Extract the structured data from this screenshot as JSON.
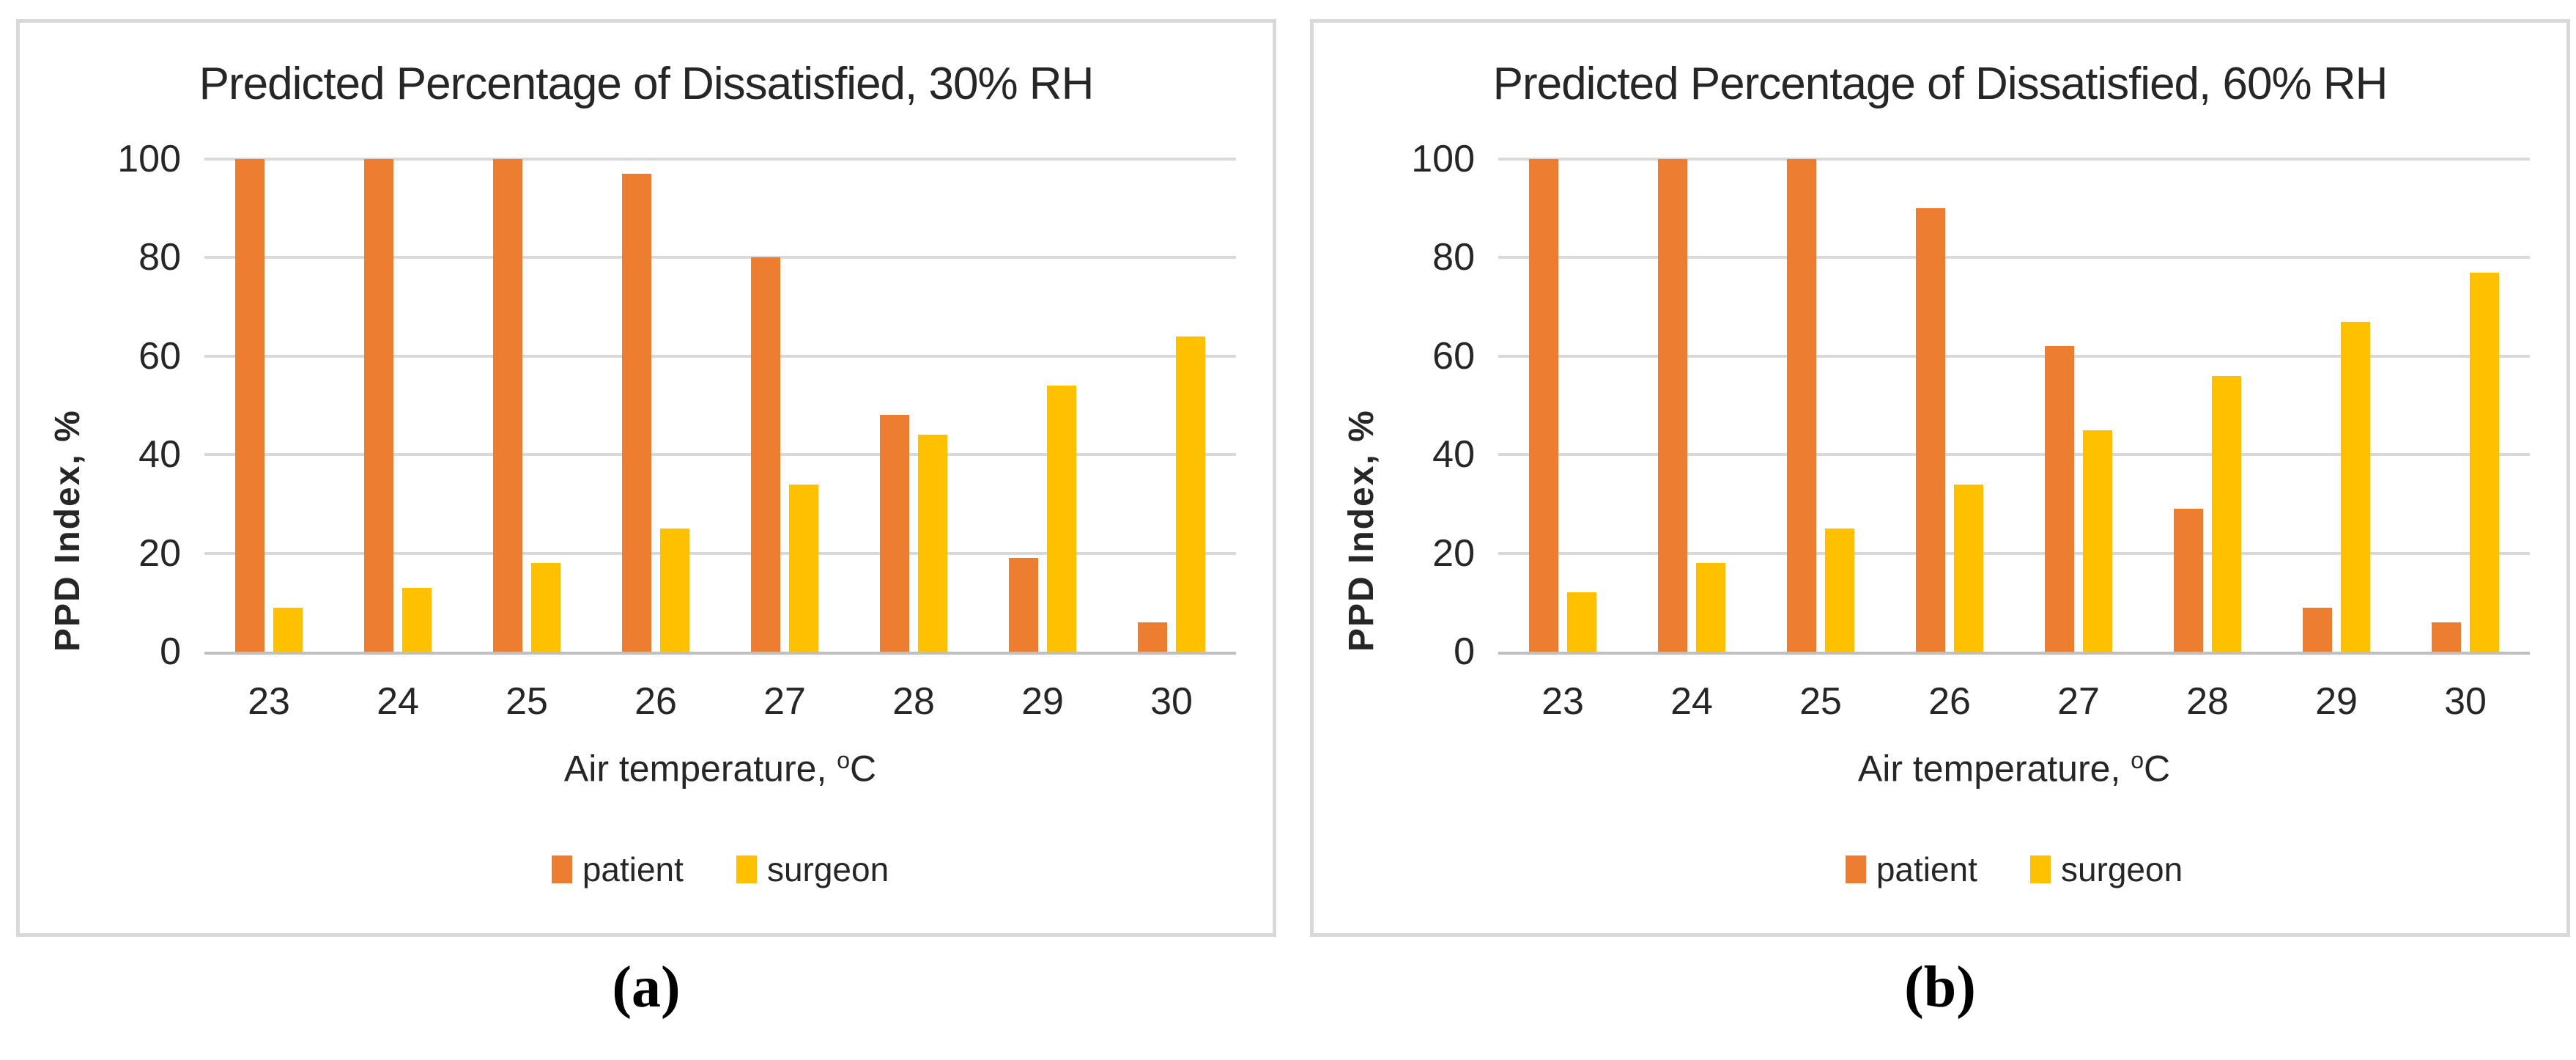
{
  "figure": {
    "captions": [
      "(a)",
      "(b)"
    ]
  },
  "colors": {
    "patient": "#ED7D31",
    "surgeon": "#FFC000",
    "gridline": "#D9D9D9",
    "axis_line": "#BFBFBF",
    "panel_border": "#D9D9D9",
    "text": "#262626"
  },
  "chart_data": [
    {
      "type": "bar",
      "title": "Predicted Percentage of Dissatisfied, 30% RH",
      "categories": [
        "23",
        "24",
        "25",
        "26",
        "27",
        "28",
        "29",
        "30"
      ],
      "series": [
        {
          "name": "patient",
          "color": "#ED7D31",
          "values": [
            100,
            100,
            100,
            97,
            80,
            48,
            19,
            6
          ]
        },
        {
          "name": "surgeon",
          "color": "#FFC000",
          "values": [
            9,
            13,
            18,
            25,
            34,
            44,
            54,
            64
          ]
        }
      ],
      "ylabel": "PPD Index, %",
      "xlabel": {
        "prefix": "Air temperature, ",
        "sup": "o",
        "suffix": "C"
      },
      "ylim": [
        0,
        100
      ],
      "yticks": [
        0,
        20,
        40,
        60,
        80,
        100
      ],
      "grid": true,
      "legend_position": "bottom"
    },
    {
      "type": "bar",
      "title": "Predicted Percentage of Dissatisfied, 60% RH",
      "categories": [
        "23",
        "24",
        "25",
        "26",
        "27",
        "28",
        "29",
        "30"
      ],
      "series": [
        {
          "name": "patient",
          "color": "#ED7D31",
          "values": [
            100,
            100,
            100,
            90,
            62,
            29,
            9,
            6
          ]
        },
        {
          "name": "surgeon",
          "color": "#FFC000",
          "values": [
            12,
            18,
            25,
            34,
            45,
            56,
            67,
            77
          ]
        }
      ],
      "ylabel": "PPD Index, %",
      "xlabel": {
        "prefix": "Air temperature, ",
        "sup": "o",
        "suffix": "C"
      },
      "ylim": [
        0,
        100
      ],
      "yticks": [
        0,
        20,
        40,
        60,
        80,
        100
      ],
      "grid": true,
      "legend_position": "bottom"
    }
  ]
}
